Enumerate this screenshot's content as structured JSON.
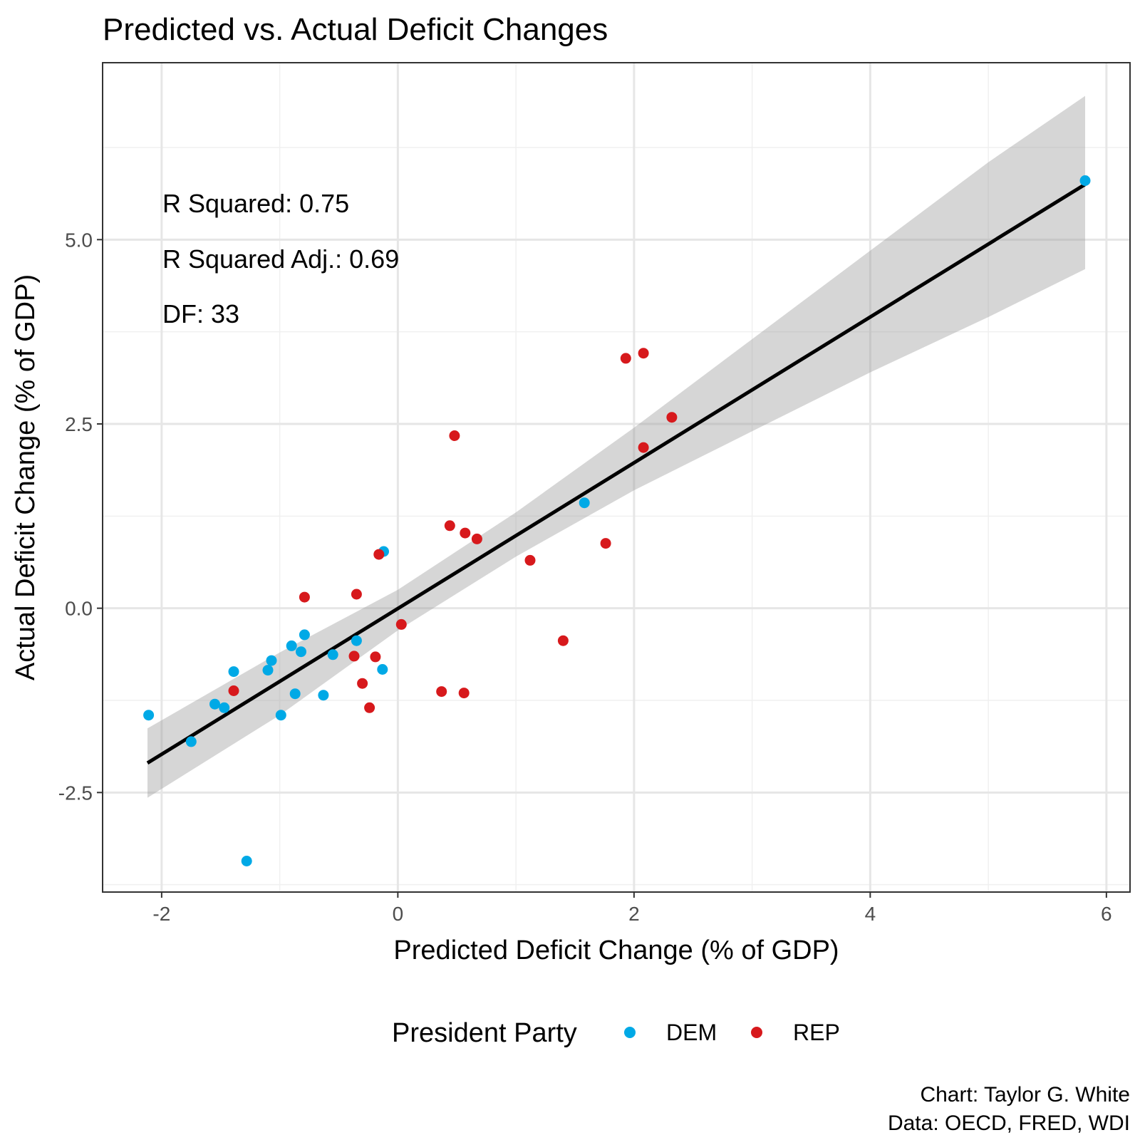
{
  "chart_data": {
    "type": "scatter",
    "title": "Predicted vs. Actual Deficit Changes",
    "xlabel": "Predicted Deficit Change (% of GDP)",
    "ylabel": "Actual Deficit Change (% of GDP)",
    "xlim": [
      -2.5,
      6.2
    ],
    "ylim": [
      -3.85,
      7.4
    ],
    "x_ticks": [
      -2,
      0,
      2,
      4,
      6
    ],
    "x_tick_labels": [
      "-2",
      "0",
      "2",
      "4",
      "6"
    ],
    "y_ticks": [
      -2.5,
      0.0,
      2.5,
      5.0
    ],
    "y_tick_labels": [
      "-2.5",
      "0.0",
      "2.5",
      "5.0"
    ],
    "grid": true,
    "annotations": [
      "R Squared: 0.75",
      "R Squared Adj.: 0.69",
      "DF: 33"
    ],
    "legend": {
      "title": "President Party",
      "position": "bottom",
      "entries": [
        {
          "label": "DEM",
          "color": "#00a9e6"
        },
        {
          "label": "REP",
          "color": "#d7191c"
        }
      ]
    },
    "fit_line": {
      "x": [
        -2.12,
        5.82
      ],
      "y": [
        -2.1,
        5.75
      ]
    },
    "confidence_band": {
      "x": [
        -2.12,
        -1.0,
        0.0,
        1.0,
        2.0,
        3.0,
        4.0,
        5.0,
        5.82
      ],
      "upper": [
        -1.63,
        -0.6,
        0.25,
        1.3,
        2.45,
        3.65,
        4.85,
        6.05,
        6.95
      ],
      "lower": [
        -2.57,
        -1.45,
        -0.3,
        0.7,
        1.6,
        2.4,
        3.2,
        3.95,
        4.6
      ]
    },
    "series": [
      {
        "name": "DEM",
        "color": "#00a9e6",
        "x": [
          5.82,
          1.58,
          -0.12,
          -0.35,
          -0.13,
          -0.55,
          -0.63,
          -0.79,
          -0.82,
          -0.9,
          -1.07,
          -1.1,
          -1.39,
          -1.55,
          -1.47,
          -0.87,
          -0.99,
          -1.75,
          -2.11,
          -1.28
        ],
        "y": [
          5.8,
          1.43,
          0.77,
          -0.44,
          -0.83,
          -0.63,
          -1.18,
          -0.36,
          -0.59,
          -0.51,
          -0.71,
          -0.84,
          -0.86,
          -1.3,
          -1.35,
          -1.16,
          -1.45,
          -1.81,
          -1.45,
          -3.43
        ]
      },
      {
        "name": "REP",
        "color": "#d7191c",
        "x": [
          2.08,
          1.93,
          2.32,
          2.08,
          0.48,
          0.44,
          0.57,
          0.67,
          1.12,
          1.76,
          -0.16,
          -0.35,
          -0.79,
          0.03,
          -0.37,
          -0.19,
          -0.3,
          -0.24,
          0.37,
          0.56,
          1.4,
          -1.39
        ],
        "y": [
          3.46,
          3.39,
          2.59,
          2.18,
          2.34,
          1.12,
          1.02,
          0.94,
          0.65,
          0.88,
          0.73,
          0.19,
          0.15,
          -0.22,
          -0.65,
          -0.66,
          -1.02,
          -1.35,
          -1.13,
          -1.15,
          -0.44,
          -1.12
        ]
      }
    ]
  },
  "caption": {
    "line1": "Chart: Taylor G. White",
    "line2": "Data: OECD, FRED, WDI"
  }
}
